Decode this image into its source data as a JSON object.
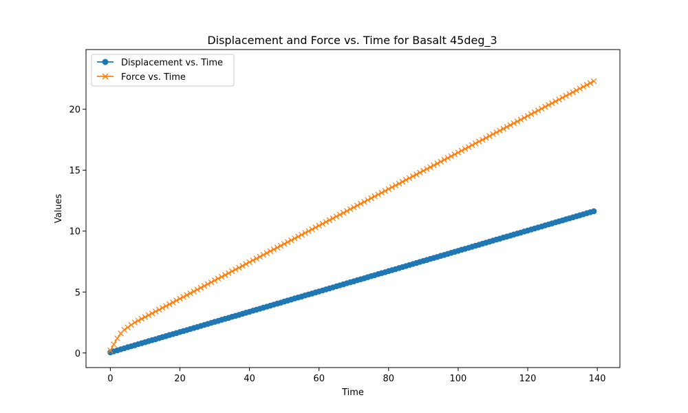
{
  "chart_data": {
    "type": "line",
    "title": "Displacement and Force vs. Time for Basalt 45deg_3",
    "xlabel": "Time",
    "ylabel": "Values",
    "xlim": [
      -7,
      146.5
    ],
    "ylim": [
      -1.2,
      24.9
    ],
    "xticks": [
      0,
      20,
      40,
      60,
      80,
      100,
      120,
      140
    ],
    "yticks": [
      0,
      5,
      10,
      15,
      20
    ],
    "grid": false,
    "legend": "top-left",
    "series": [
      {
        "name": "Displacement vs. Time",
        "color": "#1f77b4",
        "marker": "circle",
        "x_start": 0,
        "x_step": 1,
        "values": [
          0.05,
          0.13,
          0.22,
          0.3,
          0.38,
          0.47,
          0.55,
          0.63,
          0.72,
          0.8,
          0.88,
          0.97,
          1.05,
          1.13,
          1.22,
          1.3,
          1.38,
          1.47,
          1.55,
          1.63,
          1.72,
          1.8,
          1.88,
          1.97,
          2.05,
          2.13,
          2.22,
          2.3,
          2.38,
          2.47,
          2.55,
          2.63,
          2.72,
          2.8,
          2.88,
          2.97,
          3.05,
          3.13,
          3.22,
          3.3,
          3.38,
          3.47,
          3.55,
          3.63,
          3.72,
          3.8,
          3.88,
          3.97,
          4.05,
          4.13,
          4.22,
          4.3,
          4.38,
          4.47,
          4.55,
          4.63,
          4.72,
          4.8,
          4.88,
          4.97,
          5.05,
          5.13,
          5.22,
          5.3,
          5.38,
          5.47,
          5.55,
          5.63,
          5.72,
          5.8,
          5.88,
          5.97,
          6.05,
          6.13,
          6.22,
          6.3,
          6.38,
          6.47,
          6.55,
          6.63,
          6.72,
          6.8,
          6.88,
          6.97,
          7.05,
          7.13,
          7.22,
          7.3,
          7.38,
          7.47,
          7.55,
          7.63,
          7.72,
          7.8,
          7.88,
          7.97,
          8.05,
          8.13,
          8.22,
          8.3,
          8.38,
          8.47,
          8.55,
          8.63,
          8.72,
          8.8,
          8.88,
          8.97,
          9.05,
          9.13,
          9.22,
          9.3,
          9.38,
          9.47,
          9.55,
          9.63,
          9.72,
          9.8,
          9.88,
          9.97,
          10.05,
          10.13,
          10.22,
          10.3,
          10.38,
          10.47,
          10.55,
          10.63,
          10.72,
          10.8,
          10.88,
          10.97,
          11.05,
          11.13,
          11.22,
          11.3,
          11.38,
          11.47,
          11.55,
          11.63
        ]
      },
      {
        "name": "Force vs. Time",
        "color": "#ff7f0e",
        "marker": "x",
        "x_start": 0,
        "x_step": 1,
        "values": [
          0.2,
          0.7,
          1.2,
          1.6,
          1.9,
          2.1,
          2.3,
          2.5,
          2.65,
          2.8,
          2.95,
          3.1,
          3.25,
          3.4,
          3.55,
          3.7,
          3.85,
          4.0,
          4.15,
          4.3,
          4.45,
          4.6,
          4.75,
          4.9,
          5.05,
          5.2,
          5.35,
          5.5,
          5.65,
          5.8,
          5.95,
          6.1,
          6.25,
          6.4,
          6.55,
          6.7,
          6.85,
          7.0,
          7.15,
          7.3,
          7.45,
          7.6,
          7.75,
          7.9,
          8.05,
          8.2,
          8.35,
          8.5,
          8.65,
          8.8,
          8.95,
          9.1,
          9.25,
          9.4,
          9.55,
          9.7,
          9.85,
          10.0,
          10.15,
          10.3,
          10.45,
          10.6,
          10.75,
          10.9,
          11.05,
          11.2,
          11.35,
          11.5,
          11.65,
          11.8,
          11.95,
          12.1,
          12.25,
          12.4,
          12.55,
          12.7,
          12.85,
          13.0,
          13.15,
          13.3,
          13.45,
          13.6,
          13.75,
          13.9,
          14.05,
          14.2,
          14.35,
          14.5,
          14.65,
          14.8,
          14.95,
          15.1,
          15.25,
          15.4,
          15.55,
          15.7,
          15.85,
          16.0,
          16.15,
          16.3,
          16.45,
          16.6,
          16.75,
          16.9,
          17.05,
          17.2,
          17.35,
          17.5,
          17.65,
          17.8,
          17.95,
          18.1,
          18.25,
          18.4,
          18.55,
          18.7,
          18.85,
          19.0,
          19.15,
          19.3,
          19.45,
          19.6,
          19.75,
          19.9,
          20.05,
          20.2,
          20.35,
          20.5,
          20.65,
          20.8,
          20.95,
          21.1,
          21.25,
          21.4,
          21.55,
          21.7,
          21.85,
          22.0,
          22.15,
          22.3
        ]
      }
    ]
  }
}
